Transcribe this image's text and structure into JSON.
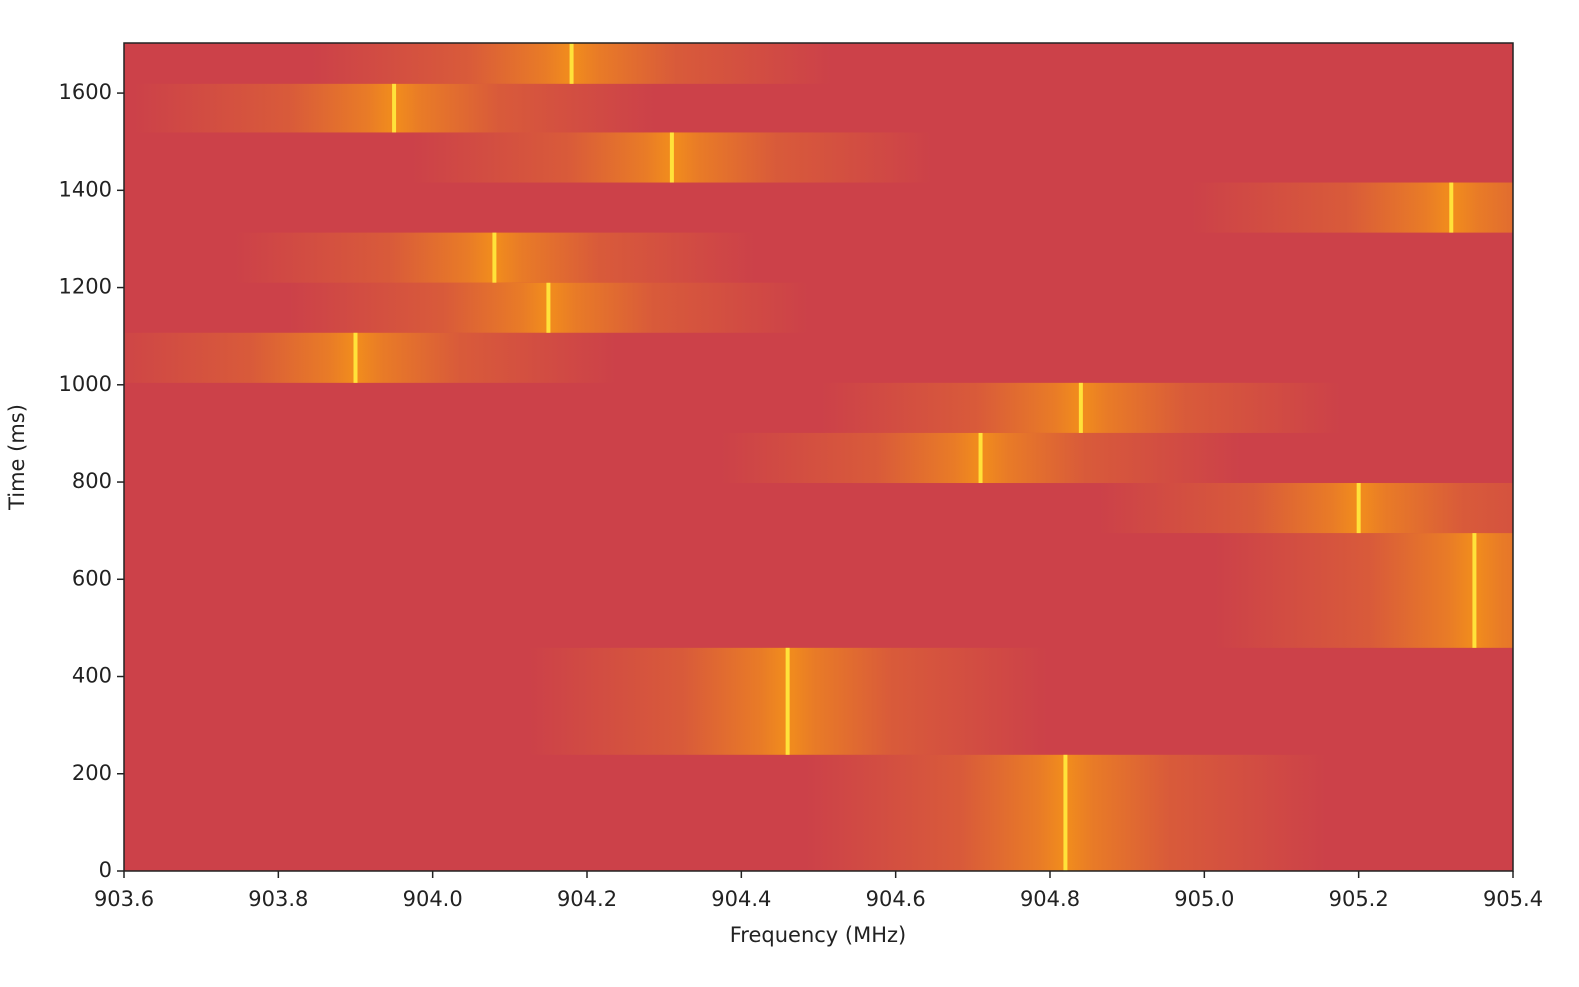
{
  "chart_data": {
    "type": "spectrogram",
    "x_label": "Frequency (MHz)",
    "y_label": "Time (ms)",
    "xlim": [
      903.6,
      905.4
    ],
    "xticks": [
      903.6,
      903.8,
      {
        "value": 904,
        "label": "904.0"
      },
      904.2,
      904.4,
      904.6,
      904.8,
      {
        "value": 905,
        "label": "905.0"
      },
      905.2,
      905.4
    ],
    "ylim": [
      0,
      1703
    ],
    "yticks": [
      0,
      200,
      400,
      600,
      800,
      1000,
      1200,
      1400,
      1600
    ],
    "background_color": "#cc4149",
    "burst_color": "#f08a1e",
    "peak_color": "#ffe23a",
    "bursts": {
      "frequency": [
        904.82,
        904.46,
        905.35,
        905.2,
        904.71,
        904.84,
        903.9,
        904.15,
        904.08,
        905.32,
        904.31,
        903.95,
        904.18
      ],
      "start": [
        0,
        239,
        459,
        695,
        798,
        901,
        1004,
        1107,
        1210,
        1313,
        1416,
        1519,
        1619
      ],
      "end": [
        239,
        459,
        695,
        798,
        901,
        1004,
        1107,
        1210,
        1313,
        1416,
        1519,
        1619,
        1703
      ]
    }
  }
}
